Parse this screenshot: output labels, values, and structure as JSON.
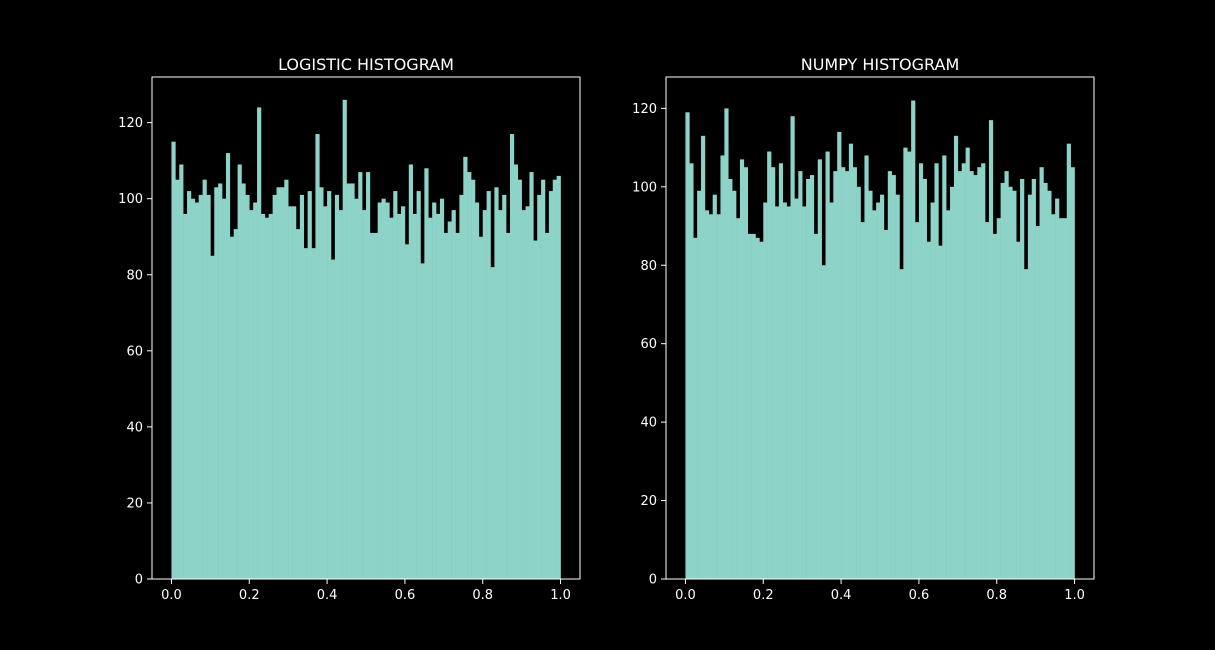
{
  "figure": {
    "background": "#000000",
    "foreground": "#ffffff",
    "bar_color": "#8dd3c7"
  },
  "chart_data": [
    {
      "type": "bar",
      "title": "LOGISTIC HISTOGRAM",
      "xlabel": "",
      "ylabel": "",
      "xlim": [
        -0.05,
        1.05
      ],
      "ylim": [
        0,
        132
      ],
      "xticks": [
        0.0,
        0.2,
        0.4,
        0.6,
        0.8,
        1.0
      ],
      "xtick_labels": [
        "0.0",
        "0.2",
        "0.4",
        "0.6",
        "0.8",
        "1.0"
      ],
      "yticks": [
        0,
        20,
        40,
        60,
        80,
        100,
        120
      ],
      "ytick_labels": [
        "0",
        "20",
        "40",
        "60",
        "80",
        "100",
        "120"
      ],
      "bin_range": [
        0,
        1
      ],
      "bins": 100,
      "grid": false,
      "values": [
        115,
        105,
        109,
        96,
        102,
        100,
        99,
        101,
        105,
        101,
        85,
        103,
        104,
        100,
        112,
        90,
        92,
        109,
        104,
        101,
        97,
        99,
        124,
        96,
        95,
        96,
        101,
        103,
        103,
        105,
        98,
        98,
        92,
        101,
        87,
        102,
        87,
        117,
        103,
        98,
        102,
        84,
        101,
        97,
        126,
        104,
        104,
        100,
        107,
        97,
        107,
        91,
        91,
        99,
        100,
        99,
        95,
        102,
        96,
        98,
        88,
        109,
        96,
        102,
        83,
        108,
        95,
        99,
        96,
        100,
        91,
        94,
        97,
        91,
        101,
        111,
        107,
        105,
        99,
        90,
        97,
        102,
        82,
        103,
        97,
        101,
        91,
        117,
        109,
        105,
        97,
        98,
        107,
        89,
        101,
        105,
        91,
        102,
        105,
        106
      ]
    },
    {
      "type": "bar",
      "title": "NUMPY HISTOGRAM",
      "xlabel": "",
      "ylabel": "",
      "xlim": [
        -0.05,
        1.05
      ],
      "ylim": [
        0,
        128
      ],
      "xticks": [
        0.0,
        0.2,
        0.4,
        0.6,
        0.8,
        1.0
      ],
      "xtick_labels": [
        "0.0",
        "0.2",
        "0.4",
        "0.6",
        "0.8",
        "1.0"
      ],
      "yticks": [
        0,
        20,
        40,
        60,
        80,
        100,
        120
      ],
      "ytick_labels": [
        "0",
        "20",
        "40",
        "60",
        "80",
        "100",
        "120"
      ],
      "bin_range": [
        0,
        1
      ],
      "bins": 100,
      "grid": false,
      "values": [
        119,
        106,
        87,
        99,
        113,
        94,
        93,
        98,
        93,
        108,
        120,
        102,
        99,
        92,
        107,
        105,
        88,
        88,
        87,
        86,
        96,
        109,
        105,
        95,
        106,
        96,
        95,
        118,
        97,
        104,
        95,
        102,
        103,
        88,
        107,
        80,
        109,
        96,
        104,
        114,
        105,
        104,
        111,
        105,
        100,
        91,
        108,
        99,
        94,
        96,
        98,
        89,
        104,
        103,
        98,
        79,
        110,
        109,
        122,
        91,
        106,
        102,
        86,
        96,
        106,
        85,
        108,
        94,
        100,
        113,
        104,
        106,
        110,
        104,
        103,
        105,
        106,
        91,
        117,
        88,
        92,
        101,
        104,
        100,
        99,
        86,
        102,
        79,
        98,
        102,
        90,
        105,
        101,
        99,
        93,
        97,
        92,
        92,
        111,
        105
      ]
    }
  ]
}
